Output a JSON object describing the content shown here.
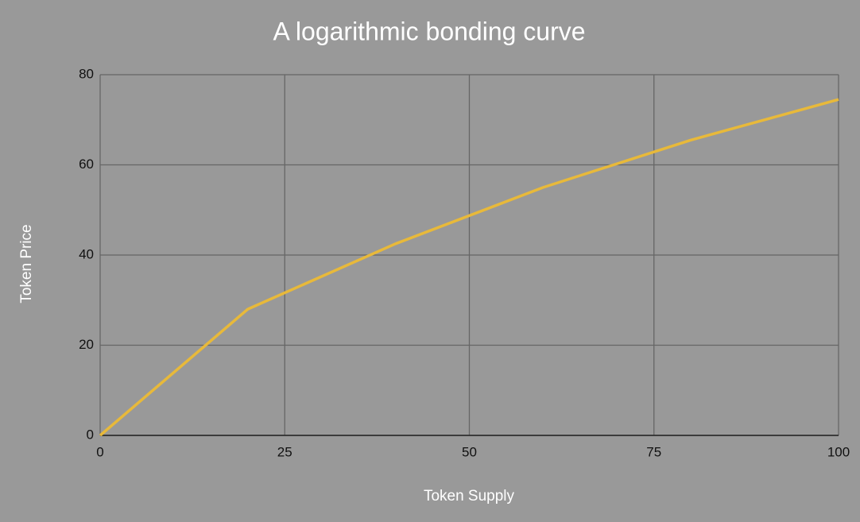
{
  "chart_data": {
    "type": "line",
    "title": "A logarithmic bonding curve",
    "x_label": "Token Supply",
    "y_label": "Token Price",
    "x": [
      0,
      20,
      40,
      60,
      80,
      100
    ],
    "values": [
      0,
      28,
      42.5,
      55,
      65.5,
      74.5
    ],
    "color": "#e8b93a",
    "xlim": [
      0,
      100
    ],
    "xticks": [
      0,
      25,
      50,
      75,
      100
    ],
    "ylim": [
      0,
      80
    ],
    "yticks": [
      0,
      20,
      40,
      60,
      80
    ],
    "grid": true
  }
}
